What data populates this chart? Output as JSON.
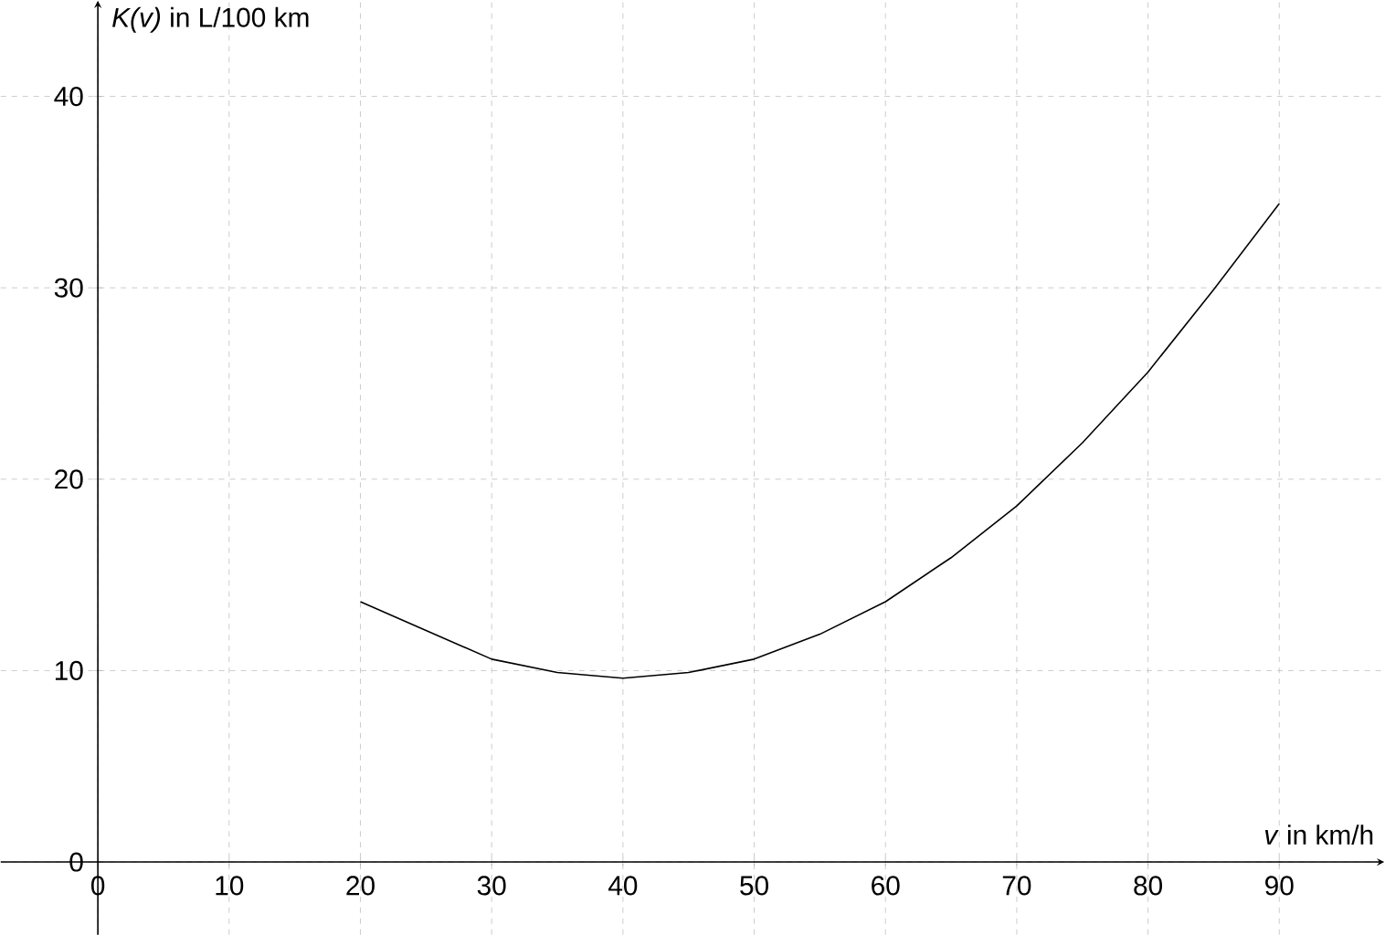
{
  "chart_data": {
    "type": "line",
    "xlabel": "*v* in km/h",
    "ylabel": "*K(v)* in L/100 km",
    "x": [
      20,
      25,
      30,
      35,
      40,
      45,
      50,
      55,
      60,
      65,
      70,
      75,
      80,
      85,
      90
    ],
    "series": [
      {
        "color": "#000000",
        "values": [
          13.6,
          12.1,
          10.6,
          9.9,
          9.6,
          9.9,
          10.6,
          11.9,
          13.6,
          15.9,
          18.6,
          21.9,
          25.6,
          29.9,
          34.4
        ]
      }
    ],
    "xlim": [
      -7.4,
      98
    ],
    "ylim": [
      -3.8,
      45
    ],
    "xticks": [
      0,
      10,
      20,
      30,
      40,
      50,
      60,
      70,
      80,
      90
    ],
    "yticks": [
      0,
      10,
      20,
      30,
      40
    ],
    "grid": true,
    "marker": "none",
    "line_style": "solid"
  }
}
